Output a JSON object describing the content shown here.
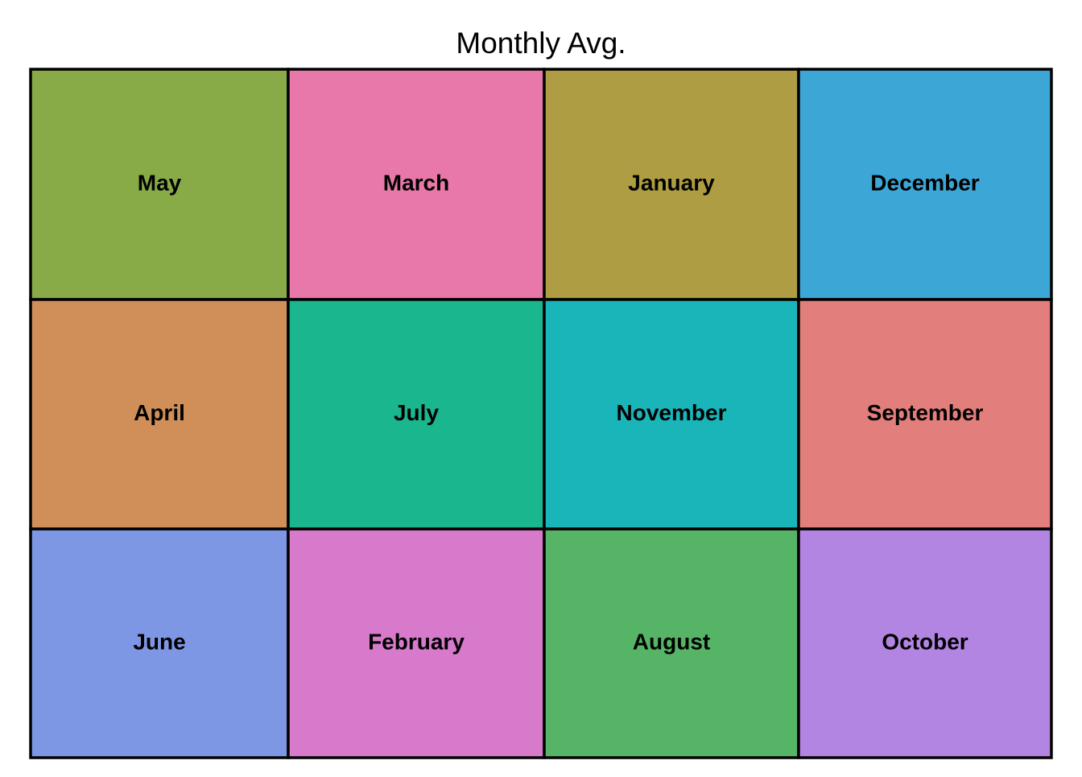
{
  "chart_data": {
    "type": "treemap",
    "title": "Monthly Avg.",
    "columns": [
      [
        "May",
        "April",
        "June"
      ],
      [
        "March",
        "July",
        "February"
      ],
      [
        "January",
        "November",
        "August"
      ],
      [
        "December",
        "September",
        "October"
      ]
    ],
    "tiles": [
      {
        "label": "May",
        "color": "#88AB48"
      },
      {
        "label": "March",
        "color": "#E778A9"
      },
      {
        "label": "January",
        "color": "#AE9D42"
      },
      {
        "label": "December",
        "color": "#3CA6D6"
      },
      {
        "label": "April",
        "color": "#D08F58"
      },
      {
        "label": "July",
        "color": "#1AB78E"
      },
      {
        "label": "November",
        "color": "#19B5B9"
      },
      {
        "label": "September",
        "color": "#E27E7B"
      },
      {
        "label": "June",
        "color": "#7E97E4"
      },
      {
        "label": "February",
        "color": "#D77ACC"
      },
      {
        "label": "August",
        "color": "#56B466"
      },
      {
        "label": "October",
        "color": "#B385E3"
      }
    ],
    "legend": "none",
    "grid": false
  }
}
